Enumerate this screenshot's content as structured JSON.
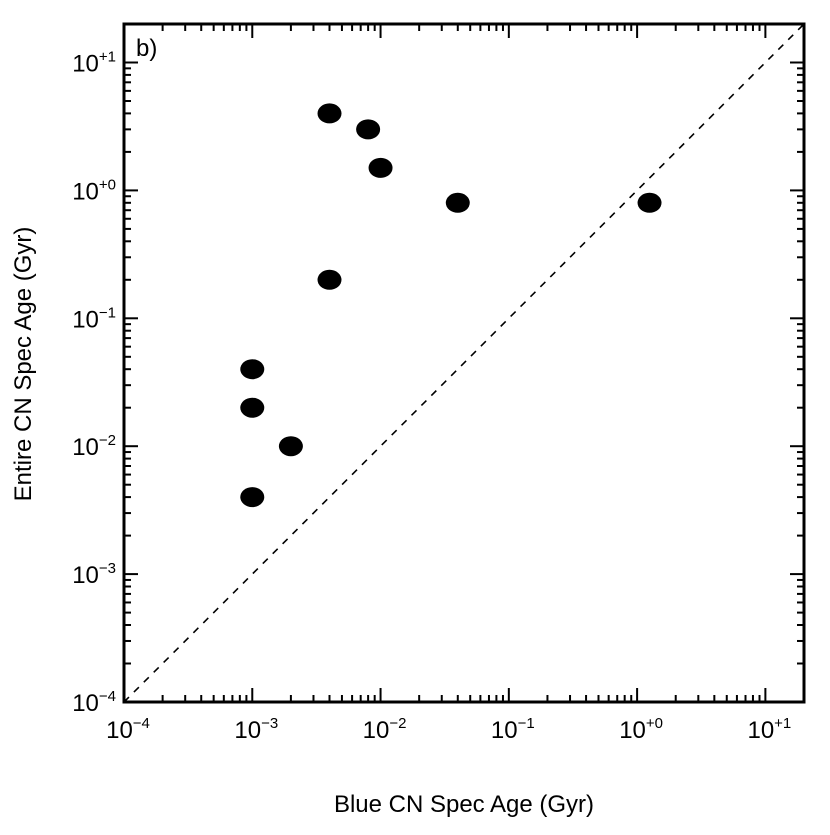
{
  "chart_data": {
    "type": "scatter",
    "panel_label": "b)",
    "xlabel": "Blue CN Spec Age (Gyr)",
    "ylabel": "Entire CN Spec Age (Gyr)",
    "xscale": "log",
    "yscale": "log",
    "xlim": [
      0.0001,
      20
    ],
    "ylim": [
      0.0001,
      20
    ],
    "x_tick_labels": [
      {
        "base": "10",
        "exp": "−4"
      },
      {
        "base": "10",
        "exp": "−3"
      },
      {
        "base": "10",
        "exp": "−2"
      },
      {
        "base": "10",
        "exp": "−1"
      },
      {
        "base": "10",
        "exp": "+0"
      },
      {
        "base": "10",
        "exp": "+1"
      }
    ],
    "y_tick_labels": [
      {
        "base": "10",
        "exp": "−4"
      },
      {
        "base": "10",
        "exp": "−3"
      },
      {
        "base": "10",
        "exp": "−2"
      },
      {
        "base": "10",
        "exp": "−1"
      },
      {
        "base": "10",
        "exp": "+0"
      },
      {
        "base": "10",
        "exp": "+1"
      }
    ],
    "grid": false,
    "reference_line": "one-to-one dashed",
    "points": [
      {
        "x": 0.004,
        "y": 4.0
      },
      {
        "x": 0.008,
        "y": 3.0
      },
      {
        "x": 0.01,
        "y": 1.5
      },
      {
        "x": 0.04,
        "y": 0.8
      },
      {
        "x": 1.25,
        "y": 0.8
      },
      {
        "x": 0.004,
        "y": 0.2
      },
      {
        "x": 0.001,
        "y": 0.04
      },
      {
        "x": 0.001,
        "y": 0.02
      },
      {
        "x": 0.002,
        "y": 0.01
      },
      {
        "x": 0.001,
        "y": 0.004
      }
    ],
    "marker_color": "#000000"
  }
}
